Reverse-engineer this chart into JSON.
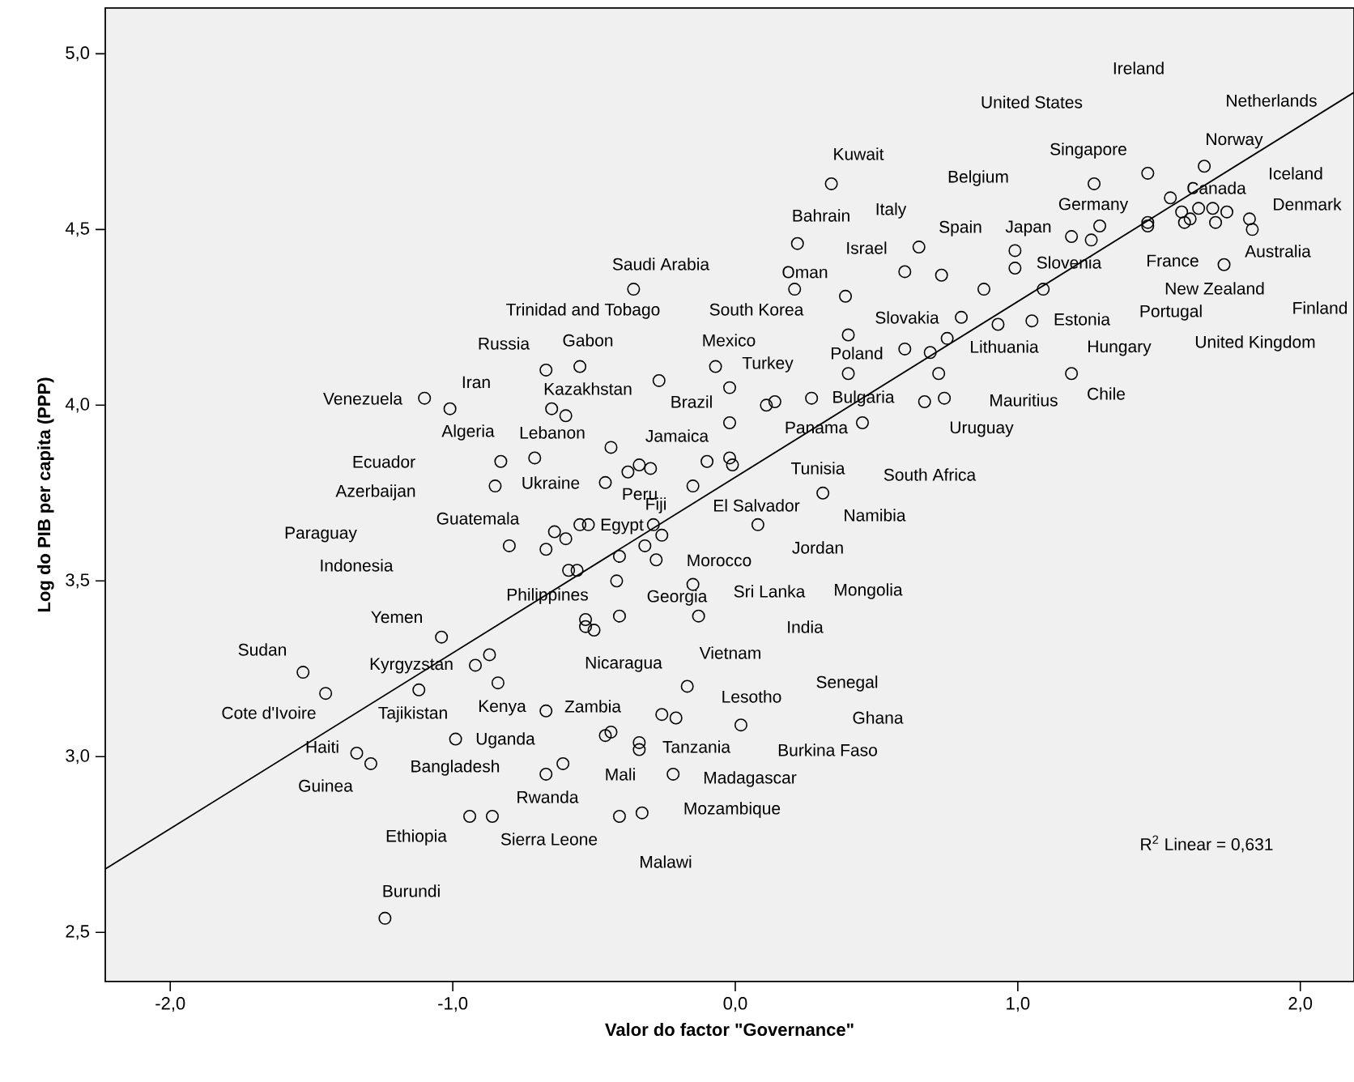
{
  "chart_data": {
    "type": "scatter",
    "xlabel": "Valor do factor \"Governance\"",
    "ylabel": "Log do PIB per capita (PPP)",
    "xlim": [
      -2.23,
      2.19
    ],
    "ylim": [
      2.36,
      5.13
    ],
    "xticks": [
      {
        "value": -2,
        "label": "-2,0"
      },
      {
        "value": -1,
        "label": "-1,0"
      },
      {
        "value": 0,
        "label": "0,0"
      },
      {
        "value": 1,
        "label": "1,0"
      },
      {
        "value": 2,
        "label": "2,0"
      }
    ],
    "yticks": [
      {
        "value": 2.5,
        "label": "2,5"
      },
      {
        "value": 3,
        "label": "3,0"
      },
      {
        "value": 3.5,
        "label": "3,5"
      },
      {
        "value": 4,
        "label": "4,0"
      },
      {
        "value": 4.5,
        "label": "4,5"
      },
      {
        "value": 5,
        "label": "5,0"
      }
    ],
    "marker": "circle",
    "series": [
      {
        "color": "#000000",
        "x": [
          -0.36,
          -0.67,
          -0.55,
          -0.07,
          -0.27,
          -0.02,
          -1.1,
          -1.01,
          -0.65,
          -0.6,
          -0.02,
          -0.44,
          -0.83,
          -0.71,
          -0.38,
          -0.34,
          -0.3,
          -0.1,
          -0.02,
          -0.01,
          -0.85,
          -0.46,
          -0.15,
          0.34,
          1.27,
          1.46,
          1.66,
          1.54,
          1.58,
          1.64,
          1.69,
          1.74,
          1.61,
          1.59,
          1.7,
          1.82,
          1.83,
          1.46,
          1.46,
          1.29,
          1.26,
          1.19,
          0.22,
          0.65,
          0.99,
          0.99,
          0.6,
          0.73,
          0.21,
          0.39,
          0.88,
          1.09,
          1.73,
          0.8,
          0.93,
          1.05,
          0.4,
          0.6,
          0.69,
          0.75,
          0.72,
          1.19,
          0.4,
          0.11,
          0.14,
          0.27,
          0.67,
          0.74,
          0.45,
          0.31,
          0.08,
          -0.64,
          -0.6,
          -0.55,
          -0.52,
          -0.8,
          -0.67,
          -0.29,
          -0.26,
          -0.41,
          -0.32,
          -0.28,
          -0.59,
          -0.56,
          -0.42,
          -0.15,
          -0.53,
          -0.53,
          -0.5,
          -0.41,
          -0.13,
          -1.04,
          -0.87,
          -0.92,
          -1.53,
          -1.45,
          -1.12,
          -0.84,
          -0.17,
          -0.67,
          -0.26,
          -0.21,
          0.02,
          -0.44,
          -0.46,
          -0.34,
          -0.34,
          -0.99,
          -1.34,
          -1.29,
          -0.61,
          -0.67,
          -0.22,
          -0.94,
          -0.86,
          -0.41,
          -0.33,
          -1.24
        ],
        "values": [
          4.33,
          4.1,
          4.11,
          4.11,
          4.07,
          4.05,
          4.02,
          3.99,
          3.99,
          3.97,
          3.95,
          3.88,
          3.84,
          3.85,
          3.81,
          3.83,
          3.82,
          3.84,
          3.85,
          3.83,
          3.77,
          3.78,
          3.77,
          4.63,
          4.63,
          4.66,
          4.68,
          4.59,
          4.55,
          4.56,
          4.56,
          4.55,
          4.53,
          4.52,
          4.52,
          4.53,
          4.5,
          4.52,
          4.51,
          4.51,
          4.47,
          4.48,
          4.46,
          4.45,
          4.44,
          4.39,
          4.38,
          4.37,
          4.33,
          4.31,
          4.33,
          4.33,
          4.4,
          4.25,
          4.23,
          4.24,
          4.2,
          4.16,
          4.15,
          4.19,
          4.09,
          4.09,
          4.09,
          4.0,
          4.01,
          4.02,
          4.01,
          4.02,
          3.95,
          3.75,
          3.66,
          3.64,
          3.62,
          3.66,
          3.66,
          3.6,
          3.59,
          3.66,
          3.63,
          3.57,
          3.6,
          3.56,
          3.53,
          3.53,
          3.5,
          3.49,
          3.39,
          3.37,
          3.36,
          3.4,
          3.4,
          3.34,
          3.29,
          3.26,
          3.24,
          3.18,
          3.19,
          3.21,
          3.2,
          3.13,
          3.12,
          3.11,
          3.09,
          3.07,
          3.06,
          3.04,
          3.02,
          3.05,
          3.01,
          2.98,
          2.98,
          2.95,
          2.95,
          2.83,
          2.83,
          2.83,
          2.84,
          2.54
        ]
      },
      {
        "type": "line",
        "marker": "none",
        "color": "#000000",
        "x": [
          -2.23,
          2.19
        ],
        "values": [
          2.68,
          4.89
        ]
      }
    ],
    "annotations": [
      "Ireland",
      "United States",
      "Netherlands",
      "Kuwait",
      "Singapore",
      "Norway",
      "Belgium",
      "Iceland",
      "Canada",
      "Bahrain",
      "Italy",
      "Germany",
      "Denmark",
      "Spain",
      "Japan",
      "Israel",
      "Slovenia",
      "Australia",
      "Saudi Arabia",
      "Oman",
      "France",
      "Trinidad and Tobago",
      "South Korea",
      "New Zealand",
      "Finland",
      "Slovakia",
      "Estonia",
      "Portugal",
      "Russia",
      "Gabon",
      "Mexico",
      "Lithuania",
      "Hungary",
      "United Kingdom",
      "Poland",
      "Turkey",
      "Iran",
      "Kazakhstan",
      "Brazil",
      "Venezuela",
      "Chile",
      "Mauritius",
      "Bulgaria",
      "Algeria",
      "Lebanon",
      "Jamaica",
      "Panama",
      "Uruguay",
      "Ecuador",
      "Ukraine",
      "Azerbaijan",
      "Peru",
      "Tunisia",
      "South Africa",
      "Fiji",
      "El Salvador",
      "Guatemala",
      "Egypt",
      "Namibia",
      "Paraguay",
      "Jordan",
      "Indonesia",
      "Morocco",
      "Philippines",
      "Georgia",
      "Sri Lanka",
      "Mongolia",
      "Yemen",
      "India",
      "Sudan",
      "Kyrgyzstan",
      "Nicaragua",
      "Vietnam",
      "Lesotho",
      "Senegal",
      "Cote d'Ivoire",
      "Tajikistan",
      "Kenya",
      "Zambia",
      "Ghana",
      "Uganda",
      "Tanzania",
      "Burkina Faso",
      "Haiti",
      "Bangladesh",
      "Mali",
      "Madagascar",
      "Guinea",
      "Rwanda",
      "Mozambique",
      "Ethiopia",
      "Sierra Leone",
      "Malawi",
      "Burundi",
      "R$^{2}$ Linear = 0,631"
    ]
  }
}
